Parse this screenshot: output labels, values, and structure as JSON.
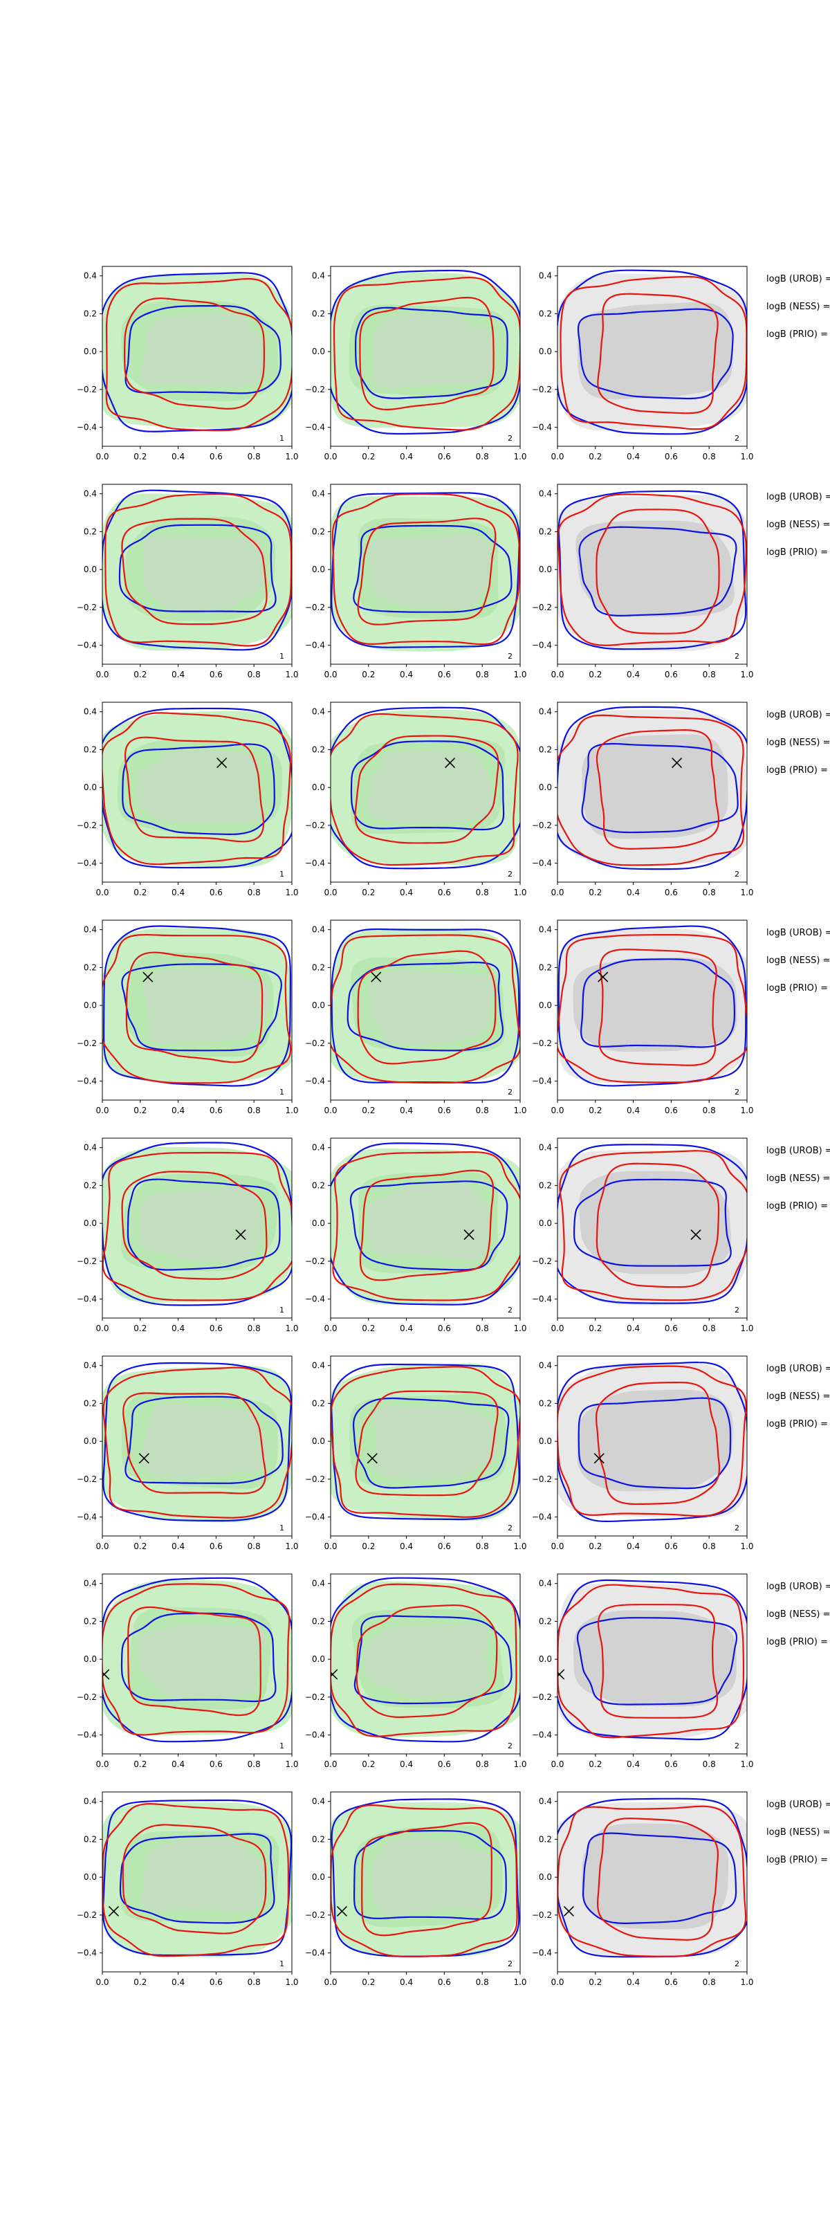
{
  "chart_data": {
    "type": "contour",
    "layout": {
      "rows": 8,
      "cols": 3
    },
    "x_ticks": [
      "0.0",
      "0.2",
      "0.4",
      "0.6",
      "0.8",
      "1.0"
    ],
    "y_ticks": [
      "0.4",
      "0.2",
      "0.0",
      "−0.2",
      "−0.4"
    ],
    "xlim": [
      0,
      1
    ],
    "ylim": [
      -0.5,
      0.45
    ],
    "grid": false,
    "colors": {
      "red_contour": "#e8150f",
      "blue_contour": "#0b12e6",
      "green_fill_outer": "#c9f0c4",
      "green_fill_inner": "#b6e6b0",
      "grey_fill_outer": "#e8e8e8",
      "grey_fill_inner": "#d2d2d2",
      "marker": "#000000"
    },
    "panel_labels": [
      "1",
      "2",
      "2"
    ],
    "panel_backgrounds": [
      "green",
      "green",
      "grey"
    ],
    "legend": [
      "logB (UROB) =",
      "logB (NESS) =",
      "logB (PRIO) ="
    ],
    "rows": [
      {
        "marker": null
      },
      {
        "marker": null
      },
      {
        "marker": {
          "x": 0.63,
          "y": 0.13
        }
      },
      {
        "marker": {
          "x": 0.24,
          "y": 0.15
        }
      },
      {
        "marker": {
          "x": 0.73,
          "y": -0.06
        }
      },
      {
        "marker": {
          "x": 0.22,
          "y": -0.09
        }
      },
      {
        "marker": {
          "x": 0.01,
          "y": -0.08
        }
      },
      {
        "marker": {
          "x": 0.06,
          "y": -0.18
        }
      }
    ]
  }
}
